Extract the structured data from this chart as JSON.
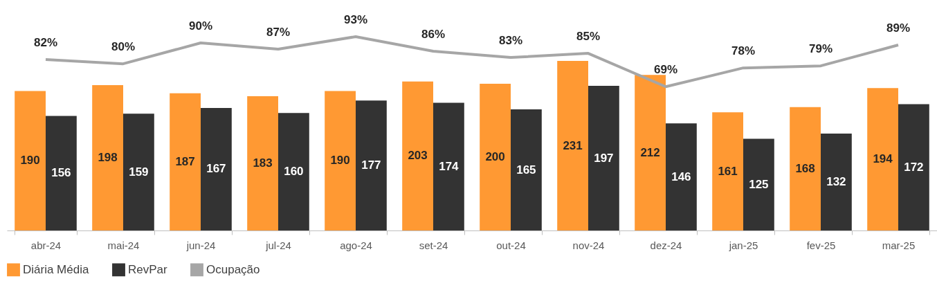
{
  "chart_data": {
    "type": "bar",
    "categories": [
      "abr-24",
      "mai-24",
      "jun-24",
      "jul-24",
      "ago-24",
      "set-24",
      "out-24",
      "nov-24",
      "dez-24",
      "jan-25",
      "fev-25",
      "mar-25"
    ],
    "series": [
      {
        "name": "Diária Média",
        "color": "#ff9933",
        "values": [
          190,
          198,
          187,
          183,
          190,
          203,
          200,
          231,
          212,
          161,
          168,
          194
        ],
        "value_labels": [
          "190",
          "198",
          "187",
          "183",
          "190",
          "203",
          "200",
          "231",
          "212",
          "161",
          "168",
          "194"
        ]
      },
      {
        "name": "RevPar",
        "color": "#333333",
        "values": [
          156,
          159,
          167,
          160,
          177,
          174,
          165,
          197,
          146,
          125,
          132,
          172
        ],
        "value_labels": [
          "156",
          "159",
          "167",
          "160",
          "177",
          "174",
          "165",
          "197",
          "146",
          "125",
          "132",
          "172"
        ]
      },
      {
        "name": "Ocupação",
        "color": "#a6a6a6",
        "type": "line",
        "axis": "y2",
        "values": [
          82,
          80,
          90,
          87,
          93,
          86,
          83,
          85,
          69,
          78,
          79,
          89
        ],
        "value_labels": [
          "82%",
          "80%",
          "90%",
          "87%",
          "93%",
          "86%",
          "83%",
          "85%",
          "69%",
          "78%",
          "79%",
          "89%"
        ]
      }
    ],
    "tick_labels": "x",
    "grid": false,
    "legend": "bottom",
    "marker": "none",
    "line_style": "solid"
  }
}
